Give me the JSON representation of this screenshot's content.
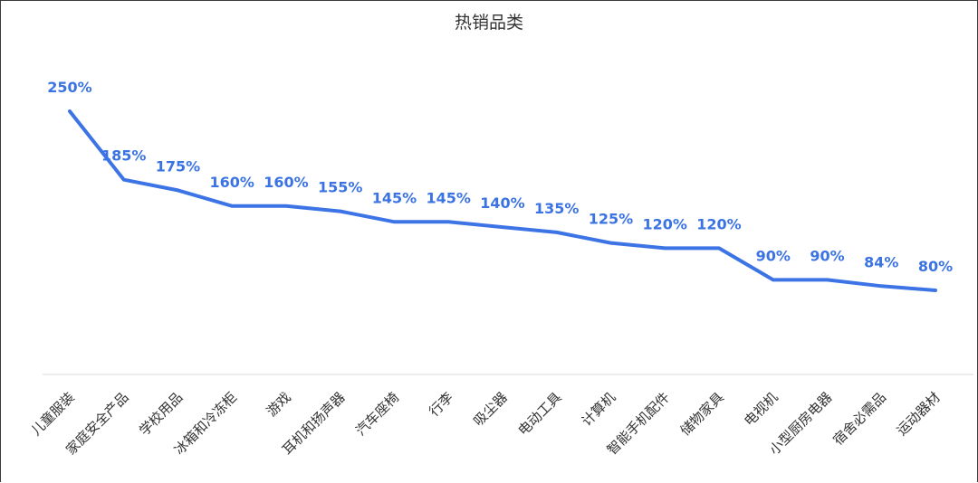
{
  "chart_data": {
    "type": "line",
    "title": "热销品类",
    "xlabel": "",
    "ylabel": "",
    "ylim": [
      0,
      300
    ],
    "grid": false,
    "unit": "%",
    "categories": [
      "儿童服装",
      "家庭安全产品",
      "学校用品",
      "冰箱和冷冻柜",
      "游戏",
      "耳机和扬声器",
      "汽车座椅",
      "行李",
      "吸尘器",
      "电动工具",
      "计算机",
      "智能手机配件",
      "储物家具",
      "电视机",
      "小型厨房电器",
      "宿舍必需品",
      "运动器材"
    ],
    "series": [
      {
        "values": [
          250,
          185,
          175,
          160,
          160,
          155,
          145,
          145,
          140,
          135,
          125,
          120,
          120,
          90,
          90,
          84,
          80
        ]
      }
    ],
    "labels": [
      "250%",
      "185%",
      "175%",
      "160%",
      "160%",
      "155%",
      "145%",
      "145%",
      "140%",
      "135%",
      "125%",
      "120%",
      "120%",
      "90%",
      "90%",
      "84%",
      "80%"
    ]
  },
  "colors": {
    "line": "#3c74e6",
    "label": "#3b73e3",
    "axis": "#d9d9d9",
    "title": "#333333",
    "tick": "#333333"
  }
}
